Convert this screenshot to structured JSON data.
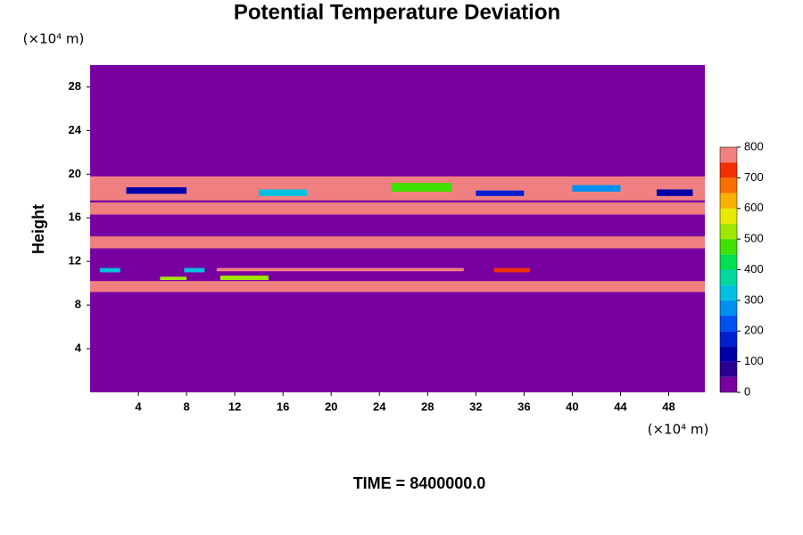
{
  "chart_data": {
    "type": "contour",
    "title": "Potential Temperature Deviation",
    "ylabel": "Height",
    "x_unit": "(×10⁴ m)",
    "y_unit": "(×10⁴ m)",
    "annotation": "TIME = 8400000.0",
    "xlim": [
      0,
      51
    ],
    "ylim": [
      0,
      30
    ],
    "xticks": [
      4,
      8,
      12,
      16,
      20,
      24,
      28,
      32,
      36,
      40,
      44,
      48
    ],
    "yticks": [
      4,
      8,
      12,
      16,
      20,
      24,
      28
    ],
    "colorbar_lim": [
      0,
      800
    ],
    "colorbar_ticks": [
      0,
      100,
      200,
      300,
      400,
      500,
      600,
      700,
      800
    ],
    "colors": [
      "#7800a0",
      "#2a0090",
      "#0000a8",
      "#0020d0",
      "#0050f0",
      "#0090f0",
      "#00c0e0",
      "#00d8a0",
      "#00e050",
      "#40e000",
      "#a0e800",
      "#e8e800",
      "#f8b000",
      "#f87000",
      "#f03000",
      "#f08080"
    ],
    "regions": [
      {
        "x": [
          0,
          51
        ],
        "y": [
          0,
          30
        ],
        "value": 0
      },
      {
        "x": [
          0,
          51
        ],
        "y": [
          9.2,
          10.2
        ],
        "value": 800
      },
      {
        "x": [
          0,
          51
        ],
        "y": [
          13.2,
          14.3
        ],
        "value": 800
      },
      {
        "x": [
          0,
          51
        ],
        "y": [
          16.3,
          17.4
        ],
        "value": 800
      },
      {
        "x": [
          0,
          51
        ],
        "y": [
          17.6,
          19.8
        ],
        "value": 800
      },
      {
        "x": [
          3,
          8
        ],
        "y": [
          18.2,
          18.8
        ],
        "value": 100
      },
      {
        "x": [
          14,
          18
        ],
        "y": [
          18.0,
          18.6
        ],
        "value": 300
      },
      {
        "x": [
          25,
          30
        ],
        "y": [
          18.4,
          19.2
        ],
        "value": 450
      },
      {
        "x": [
          32,
          36
        ],
        "y": [
          18.0,
          18.5
        ],
        "value": 150
      },
      {
        "x": [
          40,
          44
        ],
        "y": [
          18.4,
          19.0
        ],
        "value": 250
      },
      {
        "x": [
          47,
          50
        ],
        "y": [
          18.0,
          18.6
        ],
        "value": 100
      },
      {
        "x": [
          10.5,
          31
        ],
        "y": [
          11.1,
          11.4
        ],
        "value": 800
      },
      {
        "x": [
          0.8,
          2.5
        ],
        "y": [
          11.0,
          11.4
        ],
        "value": 300
      },
      {
        "x": [
          7.8,
          9.5
        ],
        "y": [
          11.0,
          11.4
        ],
        "value": 300
      },
      {
        "x": [
          33.5,
          36.5
        ],
        "y": [
          11.0,
          11.4
        ],
        "value": 700
      },
      {
        "x": [
          5.8,
          8
        ],
        "y": [
          10.3,
          10.6
        ],
        "value": 500
      },
      {
        "x": [
          10.8,
          14.8
        ],
        "y": [
          10.3,
          10.7
        ],
        "value": 500
      }
    ]
  }
}
